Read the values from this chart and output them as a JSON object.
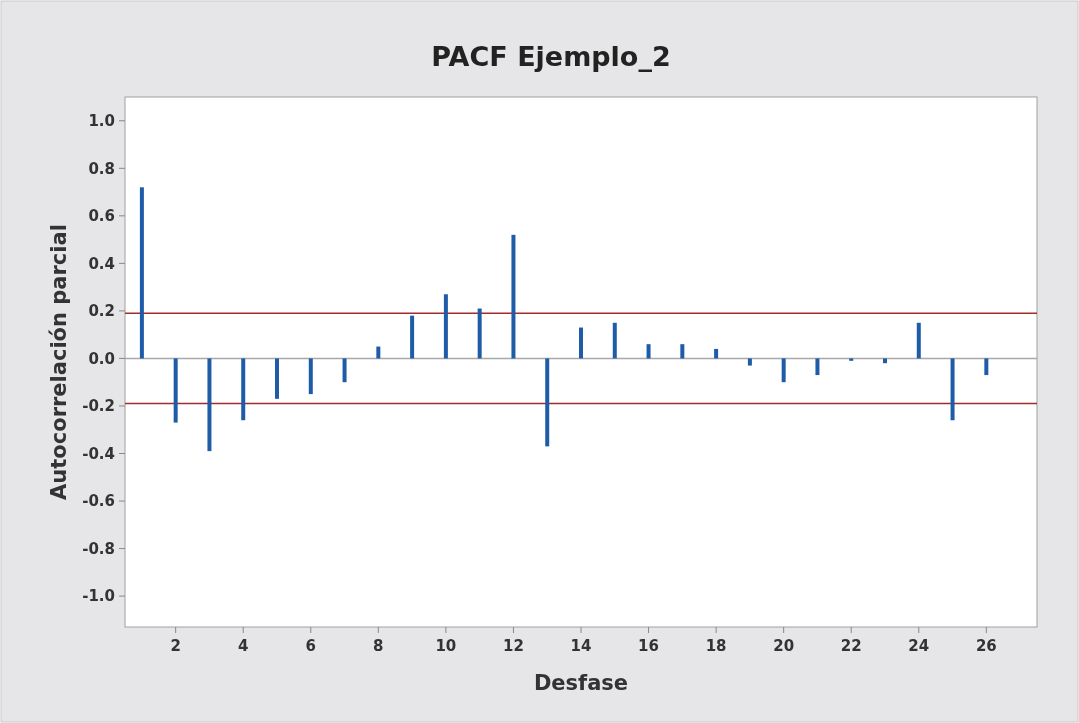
{
  "chart_data": {
    "type": "bar",
    "title": "PACF Ejemplo_2",
    "xlabel": "Desfase",
    "ylabel": "Autocorrelación parcial",
    "color": "#1f5ca8",
    "x": [
      1,
      2,
      3,
      4,
      5,
      6,
      7,
      8,
      9,
      10,
      11,
      12,
      13,
      14,
      15,
      16,
      17,
      18,
      19,
      20,
      21,
      22,
      23,
      24,
      25,
      26
    ],
    "values": [
      0.72,
      -0.27,
      -0.39,
      -0.26,
      -0.17,
      -0.15,
      -0.1,
      0.05,
      0.18,
      0.27,
      0.21,
      0.52,
      -0.37,
      0.13,
      0.15,
      0.06,
      0.06,
      0.04,
      -0.03,
      -0.1,
      -0.07,
      -0.01,
      -0.02,
      0.15,
      -0.26,
      -0.07
    ],
    "xlim": [
      0.5,
      27.5
    ],
    "xticks": [
      2,
      4,
      6,
      8,
      10,
      12,
      14,
      16,
      18,
      20,
      22,
      24,
      26
    ],
    "ylim": [
      -1.13,
      1.1
    ],
    "yticks": [
      {
        "value": -1,
        "label": "-1.0"
      },
      {
        "value": -0.8,
        "label": "-0.8"
      },
      {
        "value": -0.6,
        "label": "-0.6"
      },
      {
        "value": -0.4,
        "label": "-0.4"
      },
      {
        "value": -0.2,
        "label": "-0.2"
      },
      {
        "value": 0,
        "label": "0.0"
      },
      {
        "value": 0.2,
        "label": "0.2"
      },
      {
        "value": 0.4,
        "label": "0.4"
      },
      {
        "value": 0.6,
        "label": "0.6"
      },
      {
        "value": 0.8,
        "label": "0.8"
      },
      {
        "value": 1,
        "label": "1.0"
      }
    ],
    "ref_lines": [
      {
        "axis": "y",
        "value": 0,
        "color": "#a8a8a8"
      },
      {
        "axis": "y",
        "value": 0.19,
        "color": "#a52a2a"
      },
      {
        "axis": "y",
        "value": -0.19,
        "color": "#a52a2a"
      }
    ],
    "grid": false
  }
}
